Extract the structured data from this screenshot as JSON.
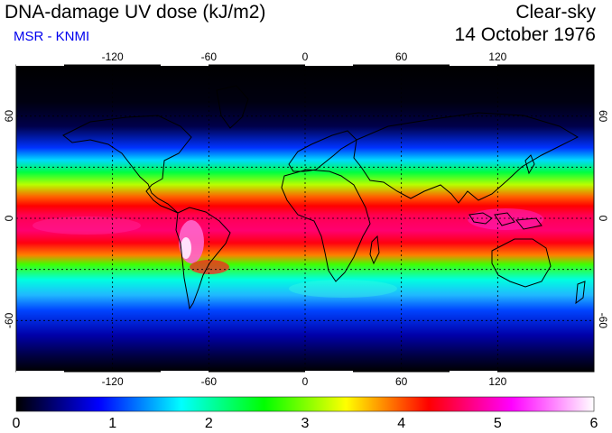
{
  "header": {
    "title": "DNA-damage UV dose (kJ/m2)",
    "subtitle": "MSR - KNMI",
    "condition": "Clear-sky",
    "date": "14 October 1976"
  },
  "map": {
    "projection": "equirectangular",
    "lon_range": [
      -180,
      180
    ],
    "lat_range": [
      -90,
      90
    ],
    "lon_ticks": [
      "-120",
      "-60",
      "0",
      "60",
      "120"
    ],
    "lat_ticks": [
      "60",
      "0",
      "-60"
    ],
    "grid_lon": [
      -120,
      -60,
      0,
      60,
      120
    ],
    "grid_lat": [
      -60,
      -30,
      0,
      30,
      60
    ],
    "grid": true
  },
  "colorbar": {
    "min": 0,
    "max": 6,
    "tick_labels": [
      "0",
      "1",
      "2",
      "3",
      "4",
      "5",
      "6"
    ],
    "colors": [
      "#000000",
      "#0000ff",
      "#00ffff",
      "#00ff00",
      "#ffff00",
      "#ff0000",
      "#ff00ff",
      "#ffffff"
    ]
  }
}
